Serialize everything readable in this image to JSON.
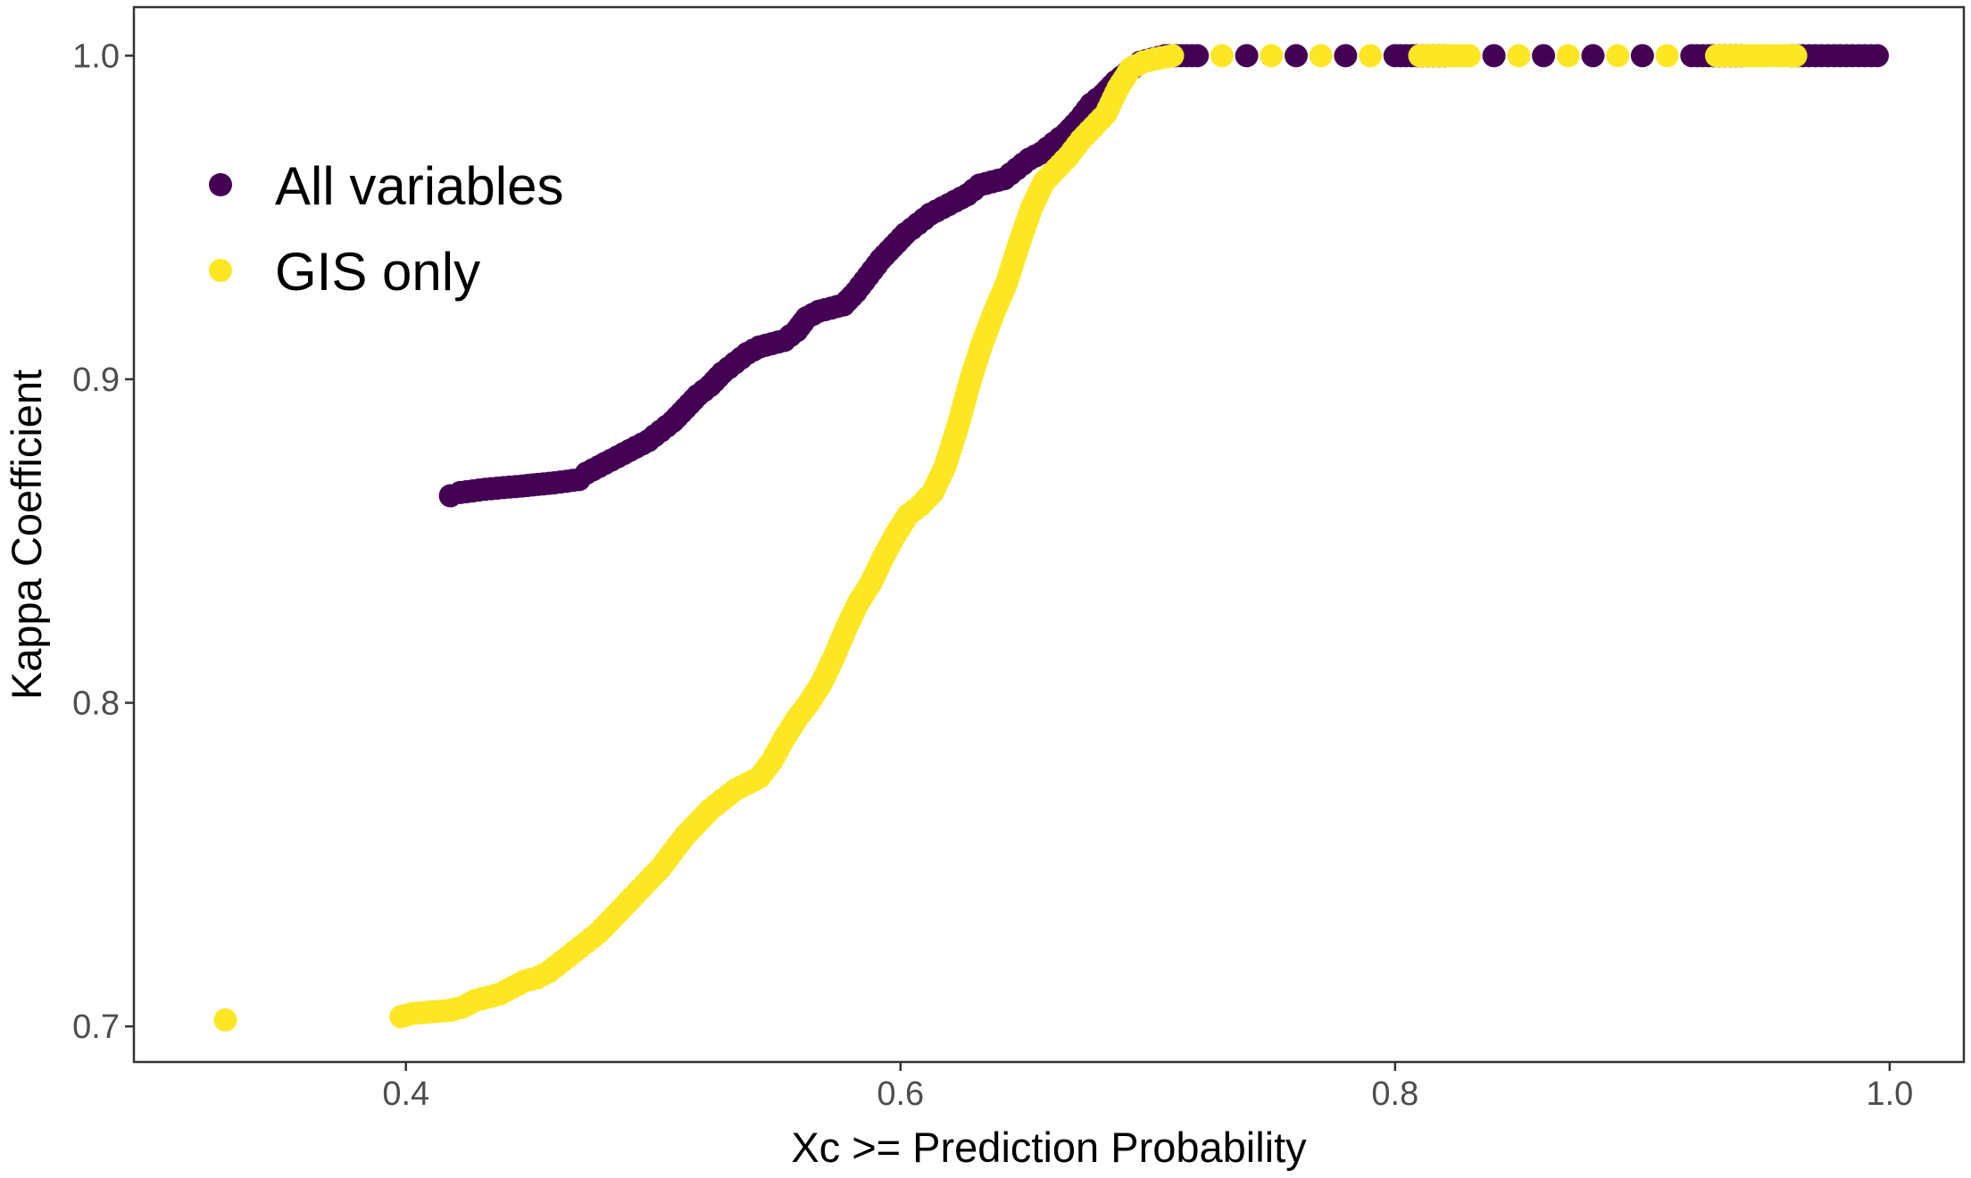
{
  "chart_data": {
    "type": "scatter",
    "title": "",
    "xlabel": "Xc >= Prediction Probability",
    "ylabel": "Kappa Coefficient",
    "xlim": [
      0.29,
      1.03
    ],
    "ylim": [
      0.689,
      1.015
    ],
    "x_ticks": [
      0.4,
      0.6,
      0.8,
      1.0
    ],
    "x_tick_labels": [
      "0.4",
      "0.6",
      "0.8",
      "1.0"
    ],
    "y_ticks": [
      0.7,
      0.8,
      0.9,
      1.0
    ],
    "y_tick_labels": [
      "0.7",
      "0.8",
      "0.9",
      "1.0"
    ],
    "grid": false,
    "legend_position": "top-left",
    "series": [
      {
        "name": "All variables",
        "color": "#440154",
        "points": [
          [
            0.418,
            0.864
          ],
          [
            0.422,
            0.865
          ],
          [
            0.432,
            0.866
          ],
          [
            0.447,
            0.867
          ],
          [
            0.46,
            0.868
          ],
          [
            0.47,
            0.869
          ],
          [
            0.473,
            0.871
          ],
          [
            0.478,
            0.873
          ],
          [
            0.483,
            0.875
          ],
          [
            0.488,
            0.877
          ],
          [
            0.493,
            0.879
          ],
          [
            0.498,
            0.881
          ],
          [
            0.503,
            0.884
          ],
          [
            0.508,
            0.887
          ],
          [
            0.513,
            0.891
          ],
          [
            0.518,
            0.895
          ],
          [
            0.523,
            0.898
          ],
          [
            0.528,
            0.902
          ],
          [
            0.533,
            0.905
          ],
          [
            0.538,
            0.908
          ],
          [
            0.543,
            0.91
          ],
          [
            0.548,
            0.911
          ],
          [
            0.553,
            0.912
          ],
          [
            0.558,
            0.915
          ],
          [
            0.562,
            0.919
          ],
          [
            0.567,
            0.921
          ],
          [
            0.572,
            0.922
          ],
          [
            0.577,
            0.923
          ],
          [
            0.582,
            0.927
          ],
          [
            0.587,
            0.932
          ],
          [
            0.592,
            0.937
          ],
          [
            0.597,
            0.941
          ],
          [
            0.602,
            0.945
          ],
          [
            0.607,
            0.948
          ],
          [
            0.612,
            0.951
          ],
          [
            0.617,
            0.953
          ],
          [
            0.622,
            0.955
          ],
          [
            0.627,
            0.957
          ],
          [
            0.632,
            0.96
          ],
          [
            0.637,
            0.961
          ],
          [
            0.642,
            0.962
          ],
          [
            0.647,
            0.965
          ],
          [
            0.652,
            0.968
          ],
          [
            0.657,
            0.97
          ],
          [
            0.662,
            0.973
          ],
          [
            0.667,
            0.976
          ],
          [
            0.672,
            0.98
          ],
          [
            0.677,
            0.985
          ],
          [
            0.682,
            0.988
          ],
          [
            0.687,
            0.992
          ],
          [
            0.692,
            0.995
          ],
          [
            0.697,
            0.998
          ],
          [
            0.702,
            0.999
          ],
          [
            0.707,
            1.0
          ],
          [
            0.72,
            1.0
          ],
          [
            0.74,
            1.0
          ],
          [
            0.76,
            1.0
          ],
          [
            0.78,
            1.0
          ],
          [
            0.8,
            1.0
          ],
          [
            0.82,
            1.0
          ],
          [
            0.84,
            1.0
          ],
          [
            0.86,
            1.0
          ],
          [
            0.88,
            1.0
          ],
          [
            0.9,
            1.0
          ],
          [
            0.92,
            1.0
          ],
          [
            0.94,
            1.0
          ],
          [
            0.96,
            1.0
          ],
          [
            0.97,
            1.0
          ],
          [
            0.98,
            1.0
          ],
          [
            0.99,
            1.0
          ],
          [
            0.995,
            1.0
          ]
        ]
      },
      {
        "name": "GIS only",
        "color": "#FDE725",
        "points": [
          [
            0.327,
            0.702
          ],
          [
            0.398,
            0.703
          ],
          [
            0.403,
            0.704
          ],
          [
            0.418,
            0.705
          ],
          [
            0.423,
            0.706
          ],
          [
            0.428,
            0.708
          ],
          [
            0.438,
            0.71
          ],
          [
            0.443,
            0.712
          ],
          [
            0.448,
            0.714
          ],
          [
            0.453,
            0.715
          ],
          [
            0.458,
            0.717
          ],
          [
            0.463,
            0.72
          ],
          [
            0.468,
            0.723
          ],
          [
            0.473,
            0.726
          ],
          [
            0.478,
            0.729
          ],
          [
            0.483,
            0.733
          ],
          [
            0.488,
            0.737
          ],
          [
            0.493,
            0.741
          ],
          [
            0.498,
            0.745
          ],
          [
            0.503,
            0.749
          ],
          [
            0.508,
            0.754
          ],
          [
            0.513,
            0.759
          ],
          [
            0.518,
            0.763
          ],
          [
            0.523,
            0.767
          ],
          [
            0.528,
            0.77
          ],
          [
            0.533,
            0.773
          ],
          [
            0.538,
            0.775
          ],
          [
            0.543,
            0.777
          ],
          [
            0.548,
            0.782
          ],
          [
            0.553,
            0.789
          ],
          [
            0.558,
            0.795
          ],
          [
            0.563,
            0.8
          ],
          [
            0.568,
            0.806
          ],
          [
            0.573,
            0.814
          ],
          [
            0.578,
            0.823
          ],
          [
            0.583,
            0.831
          ],
          [
            0.588,
            0.837
          ],
          [
            0.593,
            0.845
          ],
          [
            0.598,
            0.852
          ],
          [
            0.603,
            0.858
          ],
          [
            0.608,
            0.861
          ],
          [
            0.613,
            0.865
          ],
          [
            0.618,
            0.873
          ],
          [
            0.623,
            0.885
          ],
          [
            0.628,
            0.899
          ],
          [
            0.633,
            0.911
          ],
          [
            0.638,
            0.921
          ],
          [
            0.643,
            0.93
          ],
          [
            0.648,
            0.942
          ],
          [
            0.653,
            0.953
          ],
          [
            0.658,
            0.961
          ],
          [
            0.663,
            0.965
          ],
          [
            0.668,
            0.969
          ],
          [
            0.673,
            0.974
          ],
          [
            0.678,
            0.978
          ],
          [
            0.683,
            0.982
          ],
          [
            0.688,
            0.99
          ],
          [
            0.693,
            0.996
          ],
          [
            0.698,
            0.998
          ],
          [
            0.703,
            0.999
          ],
          [
            0.71,
            1.0
          ],
          [
            0.73,
            1.0
          ],
          [
            0.75,
            1.0
          ],
          [
            0.77,
            1.0
          ],
          [
            0.79,
            1.0
          ],
          [
            0.81,
            1.0
          ],
          [
            0.83,
            1.0
          ],
          [
            0.85,
            1.0
          ],
          [
            0.87,
            1.0
          ],
          [
            0.89,
            1.0
          ],
          [
            0.91,
            1.0
          ],
          [
            0.93,
            1.0
          ],
          [
            0.95,
            1.0
          ],
          [
            0.962,
            1.0
          ]
        ]
      }
    ]
  }
}
